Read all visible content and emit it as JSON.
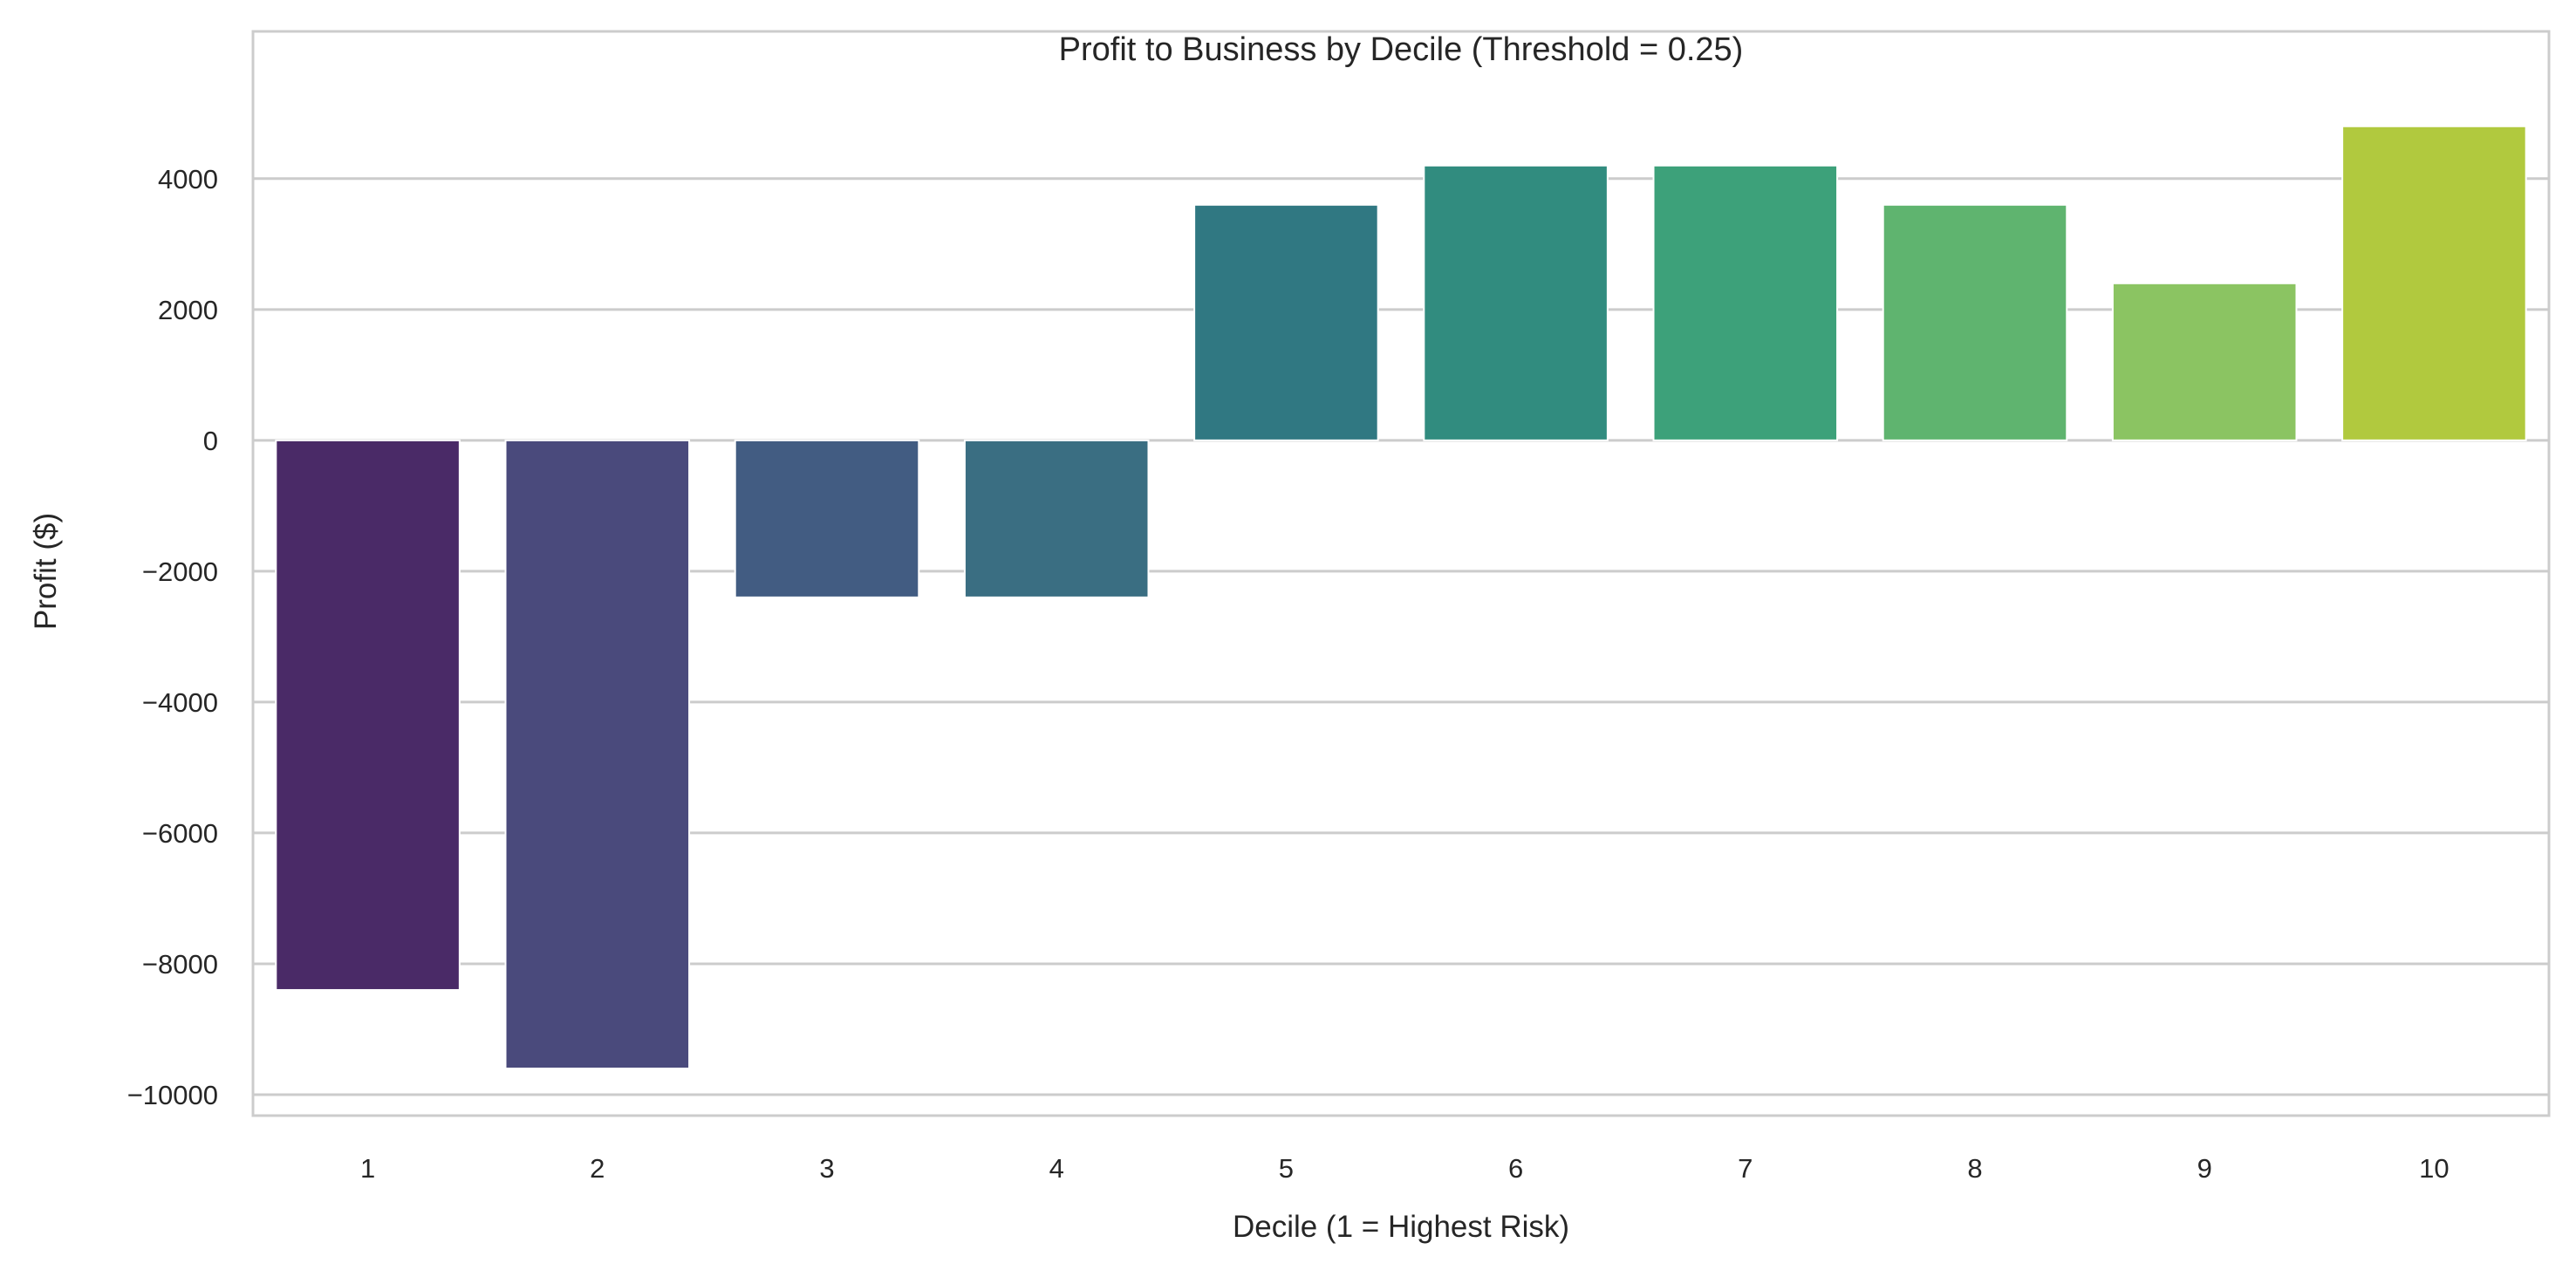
{
  "chart_data": {
    "type": "bar",
    "title": "Profit to Business by Decile (Threshold = 0.25)",
    "xlabel": "Decile (1 = Highest Risk)",
    "ylabel": "Profit ($)",
    "categories": [
      "1",
      "2",
      "3",
      "4",
      "5",
      "6",
      "7",
      "8",
      "9",
      "10"
    ],
    "values": [
      -8400,
      -9600,
      -2400,
      -2400,
      3600,
      4200,
      4200,
      3600,
      2400,
      4800
    ],
    "colors": [
      "#4a2a67",
      "#4a4a7c",
      "#425c82",
      "#3a6e82",
      "#307882",
      "#318c7f",
      "#3da17a",
      "#5fb46f",
      "#8bc462",
      "#b1c93e"
    ],
    "yticks": [
      -10000,
      -8000,
      -6000,
      -4000,
      -2000,
      0,
      2000,
      4000
    ],
    "ytick_labels": [
      "−10000",
      "−8000",
      "−6000",
      "−4000",
      "−2000",
      "0",
      "2000",
      "4000"
    ],
    "ylim": [
      -10320,
      6250
    ],
    "grid": true,
    "grid_color": "#cccccc"
  }
}
